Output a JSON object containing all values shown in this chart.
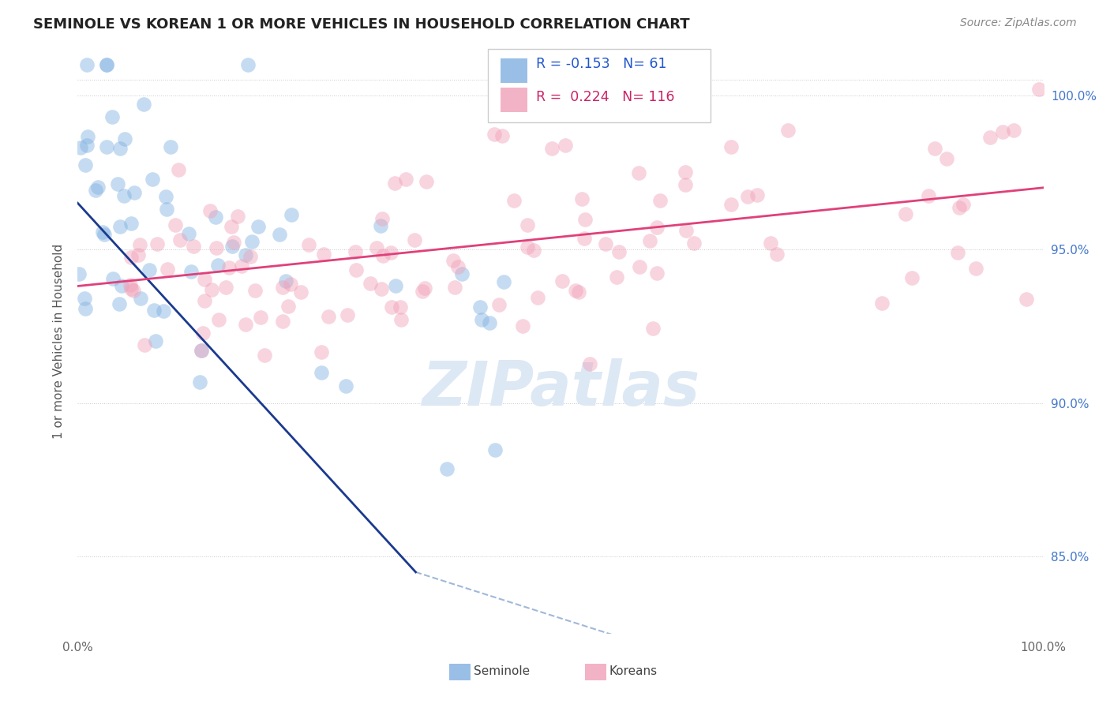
{
  "title": "SEMINOLE VS KOREAN 1 OR MORE VEHICLES IN HOUSEHOLD CORRELATION CHART",
  "source": "Source: ZipAtlas.com",
  "ylabel": "1 or more Vehicles in Household",
  "right_yticks": [
    85.0,
    90.0,
    95.0,
    100.0
  ],
  "legend_blue_R": "-0.153",
  "legend_blue_N": "61",
  "legend_pink_R": "0.224",
  "legend_pink_N": "116",
  "legend_blue_label": "Seminole",
  "legend_pink_label": "Koreans",
  "blue_color": "#80b0e0",
  "pink_color": "#f0a0b8",
  "blue_line_color": "#1a3a8f",
  "pink_line_color": "#e0407a",
  "dash_line_color": "#a0b8d8",
  "xmin": 0.0,
  "xmax": 100.0,
  "ymin": 82.5,
  "ymax": 101.5,
  "background_color": "#ffffff",
  "grid_color": "#c8c8c8",
  "watermark_color": "#dde8f5",
  "title_fontsize": 13,
  "axis_label_fontsize": 11,
  "dot_size": 180
}
